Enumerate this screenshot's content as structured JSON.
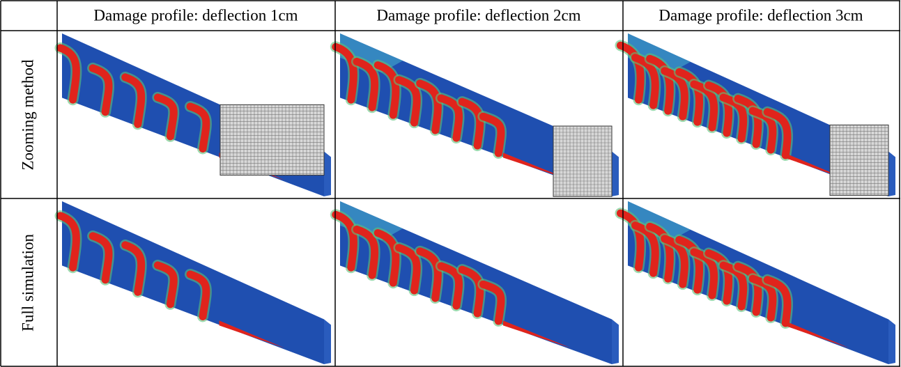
{
  "table": {
    "columns": [
      "Damage profile: deflection 1cm",
      "Damage profile: deflection 2cm",
      "Damage profile: deflection 3cm"
    ],
    "rows": [
      {
        "label": "Zooming method"
      },
      {
        "label": "Full simulation"
      }
    ]
  }
}
